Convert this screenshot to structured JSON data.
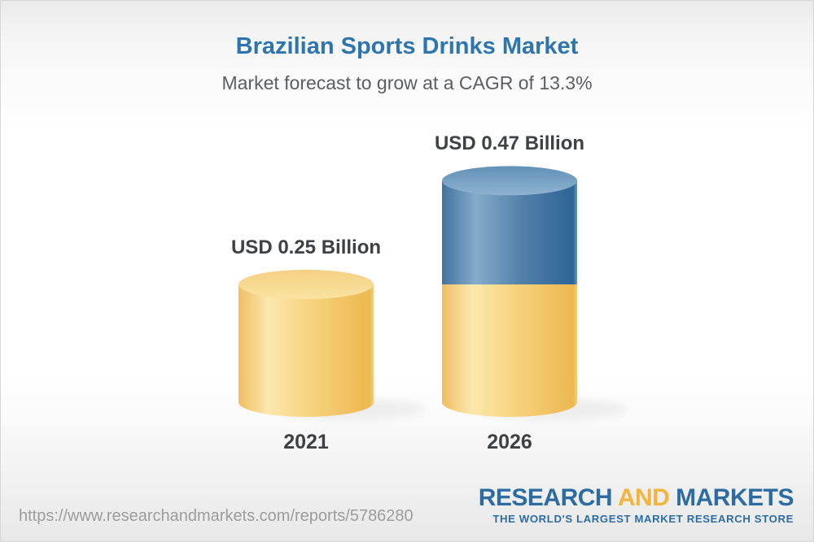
{
  "canvas": {
    "background_top": "#ebebeb",
    "background_bottom": "#e8e8e8",
    "border_color": "#d6d6d6"
  },
  "header": {
    "title": "Brazilian Sports Drinks Market",
    "subtitle": "Market forecast to grow at a CAGR of 13.3%",
    "title_color": "#2e75b0",
    "subtitle_color": "#5a5e63"
  },
  "chart_data": {
    "type": "bar",
    "bar_style": "3d-cylinder",
    "title": "Brazilian Sports Drinks Market",
    "subtitle": "Market forecast to grow at a CAGR of 13.3%",
    "unit": "USD Billion",
    "cagr_percent": 13.3,
    "categories": [
      "2021",
      "2026"
    ],
    "values": [
      0.25,
      0.47
    ],
    "ylim": [
      0,
      0.5
    ],
    "grid": false,
    "legend": false,
    "bars": [
      {
        "category": "2021",
        "label": "USD 0.25 Billion",
        "total": 0.25,
        "segments": [
          {
            "color": "yellow",
            "value": 0.25
          }
        ]
      },
      {
        "category": "2026",
        "label": "USD 0.47 Billion",
        "total": 0.47,
        "segments": [
          {
            "color": "yellow",
            "value": 0.25
          },
          {
            "color": "blue",
            "value": 0.22
          }
        ]
      }
    ],
    "colors": {
      "yellow_body": [
        "#efbf63",
        "#fce8ad",
        "#f6d27c",
        "#edb850",
        "#f3cf7f"
      ],
      "blue_body": [
        "#41739f",
        "#85abcb",
        "#517fa9",
        "#2e6496",
        "#6e96b9"
      ],
      "yellow_cap": [
        "#f4d083",
        "#fae3a2"
      ],
      "blue_cap": [
        "#6090b8",
        "#8fb3d0"
      ],
      "label_color": "#3d4045"
    }
  },
  "footer": {
    "url": "https://www.researchandmarkets.com/reports/5786280",
    "url_color": "#9c9c9c",
    "logo": {
      "word1": "RESEARCH",
      "word2": "AND",
      "word3": "MARKETS",
      "tagline": "THE WORLD'S LARGEST MARKET RESEARCH STORE",
      "blue": "#2d6ca3",
      "gold": "#f2b43d"
    }
  }
}
